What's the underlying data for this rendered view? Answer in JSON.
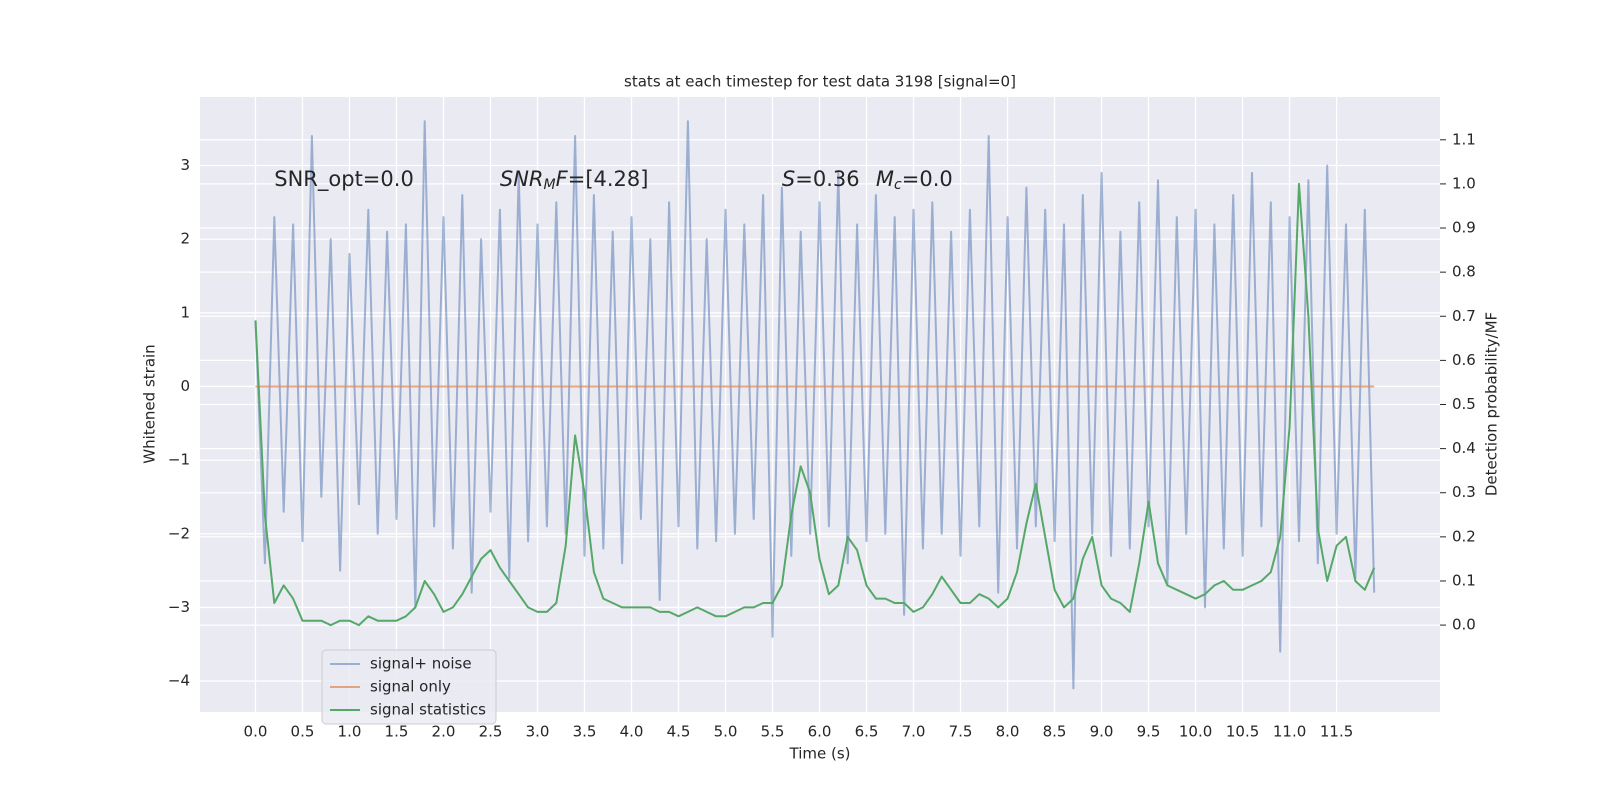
{
  "chart_data": {
    "type": "line",
    "title": "stats at each timestep for test data 3198 [signal=0]",
    "xlabel": "Time (s)",
    "ylabel": "Whitened strain",
    "y2label": "Detection probability/MF",
    "xlim": [
      -0.59,
      12.6
    ],
    "ylim": [
      -4.42,
      3.93
    ],
    "y2lim": [
      -0.197,
      1.197
    ],
    "xticks": [
      {
        "value": 0,
        "label": "0.0"
      },
      0.5,
      {
        "value": 1,
        "label": "1.0"
      },
      1.5,
      {
        "value": 2,
        "label": "2.0"
      },
      2.5,
      {
        "value": 3,
        "label": "3.0"
      },
      3.5,
      {
        "value": 4,
        "label": "4.0"
      },
      4.5,
      {
        "value": 5,
        "label": "5.0"
      },
      5.5,
      {
        "value": 6,
        "label": "6.0"
      },
      6.5,
      {
        "value": 7,
        "label": "7.0"
      },
      7.5,
      {
        "value": 8,
        "label": "8.0"
      },
      8.5,
      {
        "value": 9,
        "label": "9.0"
      },
      9.5,
      {
        "value": 10,
        "label": "10.0"
      },
      10.5,
      {
        "value": 11,
        "label": "11.0"
      },
      11.5
    ],
    "yticks": [
      {
        "value": -4,
        "label": "−4"
      },
      {
        "value": -3,
        "label": "−3"
      },
      {
        "value": -2,
        "label": "−2"
      },
      {
        "value": -1,
        "label": "−1"
      },
      0,
      1,
      2,
      3
    ],
    "y2ticks": [
      {
        "value": 0,
        "label": "0.0"
      },
      0.1,
      0.2,
      0.3,
      0.4,
      0.5,
      0.6,
      0.7,
      0.8,
      0.9,
      {
        "value": 1,
        "label": "1.0"
      },
      1.1
    ],
    "grid": true,
    "legend": "lower left",
    "x": [
      0,
      0.1,
      0.2,
      0.3,
      0.4,
      0.5,
      0.6,
      0.7,
      0.8,
      0.9,
      1,
      1.1,
      1.2,
      1.3,
      1.4,
      1.5,
      1.6,
      1.7,
      1.8,
      1.9,
      2,
      2.1,
      2.2,
      2.3,
      2.4,
      2.5,
      2.6,
      2.7,
      2.8,
      2.9,
      3,
      3.1,
      3.2,
      3.3,
      3.4,
      3.5,
      3.6,
      3.7,
      3.8,
      3.9,
      4,
      4.1,
      4.2,
      4.3,
      4.4,
      4.5,
      4.6,
      4.7,
      4.8,
      4.9,
      5,
      5.1,
      5.2,
      5.3,
      5.4,
      5.5,
      5.6,
      5.7,
      5.8,
      5.9,
      6,
      6.1,
      6.2,
      6.3,
      6.4,
      6.5,
      6.6,
      6.7,
      6.8,
      6.9,
      7,
      7.1,
      7.2,
      7.3,
      7.4,
      7.5,
      7.6,
      7.7,
      7.8,
      7.9,
      8,
      8.1,
      8.2,
      8.3,
      8.4,
      8.5,
      8.6,
      8.7,
      8.8,
      8.9,
      9,
      9.1,
      9.2,
      9.3,
      9.4,
      9.5,
      9.6,
      9.7,
      9.8,
      9.9,
      10,
      10.1,
      10.2,
      10.3,
      10.4,
      10.5,
      10.6,
      10.7,
      10.8,
      10.9,
      11,
      11.1,
      11.2,
      11.3,
      11.4,
      11.5,
      11.6,
      11.7,
      11.8,
      11.9
    ],
    "series": [
      {
        "name": "signal+ noise",
        "color": "#4c72b0",
        "opacity": 0.5,
        "values": [
          0.9,
          -2.4,
          2.3,
          -1.7,
          2.2,
          -2.1,
          3.4,
          -1.5,
          2.0,
          -2.5,
          1.8,
          -1.6,
          2.4,
          -2.0,
          2.1,
          -1.8,
          2.2,
          -3.0,
          3.6,
          -1.9,
          2.3,
          -2.2,
          2.6,
          -2.8,
          2.0,
          -1.7,
          2.4,
          -2.6,
          2.9,
          -2.1,
          2.2,
          -1.9,
          2.5,
          -2.0,
          3.4,
          -2.3,
          2.6,
          -2.2,
          2.1,
          -2.4,
          2.3,
          -1.8,
          2.0,
          -2.9,
          2.5,
          -1.9,
          3.6,
          -2.2,
          2.0,
          -2.1,
          2.4,
          -2.0,
          2.2,
          -1.8,
          2.6,
          -3.4,
          2.7,
          -2.3,
          2.1,
          -2.0,
          2.5,
          -1.9,
          2.9,
          -2.4,
          2.2,
          -2.1,
          2.6,
          -2.0,
          2.3,
          -3.1,
          2.4,
          -2.2,
          2.5,
          -2.0,
          2.1,
          -2.3,
          2.4,
          -1.9,
          3.4,
          -2.8,
          2.3,
          -2.2,
          2.7,
          -1.9,
          2.4,
          -2.1,
          2.2,
          -4.1,
          2.6,
          -2.0,
          2.9,
          -2.3,
          2.1,
          -2.2,
          2.5,
          -1.9,
          2.8,
          -2.7,
          2.3,
          -2.0,
          2.4,
          -3.0,
          2.2,
          -2.2,
          2.6,
          -2.3,
          2.9,
          -1.9,
          2.5,
          -3.6,
          2.3,
          -2.1,
          2.8,
          -2.4,
          3.0,
          -2.0,
          2.2,
          -2.6,
          2.4,
          -2.8
        ]
      },
      {
        "name": "signal only",
        "color": "#dd8452",
        "opacity": 0.7,
        "values": [
          0,
          0,
          0,
          0,
          0,
          0,
          0,
          0,
          0,
          0,
          0,
          0,
          0,
          0,
          0,
          0,
          0,
          0,
          0,
          0,
          0,
          0,
          0,
          0,
          0,
          0,
          0,
          0,
          0,
          0,
          0,
          0,
          0,
          0,
          0,
          0,
          0,
          0,
          0,
          0,
          0,
          0,
          0,
          0,
          0,
          0,
          0,
          0,
          0,
          0,
          0,
          0,
          0,
          0,
          0,
          0,
          0,
          0,
          0,
          0,
          0,
          0,
          0,
          0,
          0,
          0,
          0,
          0,
          0,
          0,
          0,
          0,
          0,
          0,
          0,
          0,
          0,
          0,
          0,
          0,
          0,
          0,
          0,
          0,
          0,
          0,
          0,
          0,
          0,
          0,
          0,
          0,
          0,
          0,
          0,
          0,
          0,
          0,
          0,
          0,
          0,
          0,
          0,
          0,
          0,
          0,
          0,
          0,
          0,
          0,
          0,
          0,
          0,
          0,
          0,
          0,
          0,
          0,
          0,
          0
        ]
      },
      {
        "name": "signal statistics",
        "color": "#55a868",
        "opacity": 1,
        "axis": "y2",
        "values": [
          0.69,
          0.25,
          0.05,
          0.09,
          0.06,
          0.01,
          0.01,
          0.01,
          0.0,
          0.01,
          0.01,
          0.0,
          0.02,
          0.01,
          0.01,
          0.01,
          0.02,
          0.04,
          0.1,
          0.07,
          0.03,
          0.04,
          0.07,
          0.11,
          0.15,
          0.17,
          0.13,
          0.1,
          0.07,
          0.04,
          0.03,
          0.03,
          0.05,
          0.18,
          0.43,
          0.3,
          0.12,
          0.06,
          0.05,
          0.04,
          0.04,
          0.04,
          0.04,
          0.03,
          0.03,
          0.02,
          0.03,
          0.04,
          0.03,
          0.02,
          0.02,
          0.03,
          0.04,
          0.04,
          0.05,
          0.05,
          0.09,
          0.25,
          0.36,
          0.3,
          0.15,
          0.07,
          0.09,
          0.2,
          0.17,
          0.09,
          0.06,
          0.06,
          0.05,
          0.05,
          0.03,
          0.04,
          0.07,
          0.11,
          0.08,
          0.05,
          0.05,
          0.07,
          0.06,
          0.04,
          0.06,
          0.12,
          0.23,
          0.32,
          0.2,
          0.08,
          0.04,
          0.06,
          0.15,
          0.2,
          0.09,
          0.06,
          0.05,
          0.03,
          0.14,
          0.28,
          0.14,
          0.09,
          0.08,
          0.07,
          0.06,
          0.07,
          0.09,
          0.1,
          0.08,
          0.08,
          0.09,
          0.1,
          0.12,
          0.2,
          0.45,
          1.0,
          0.7,
          0.22,
          0.1,
          0.18,
          0.2,
          0.1,
          0.08,
          0.13
        ]
      }
    ],
    "annotations": [
      {
        "x": 0.2,
        "y": 2.8,
        "parts": [
          {
            "t": "SNR_opt=0.0"
          }
        ]
      },
      {
        "x": 2.6,
        "y": 2.8,
        "parts": [
          {
            "t": "SNR",
            "italic": true
          },
          {
            "t": "M",
            "italic": true,
            "sub": true
          },
          {
            "t": "F",
            "italic": true
          },
          {
            "t": "=[4.28]"
          }
        ]
      },
      {
        "x": 5.6,
        "y": 2.8,
        "parts": [
          {
            "t": "S",
            "italic": true
          },
          {
            "t": "=0.36"
          }
        ]
      },
      {
        "x": 6.6,
        "y": 2.8,
        "parts": [
          {
            "t": "M",
            "italic": true
          },
          {
            "t": "c",
            "italic": true,
            "sub": true
          },
          {
            "t": "=0.0"
          }
        ]
      }
    ]
  }
}
